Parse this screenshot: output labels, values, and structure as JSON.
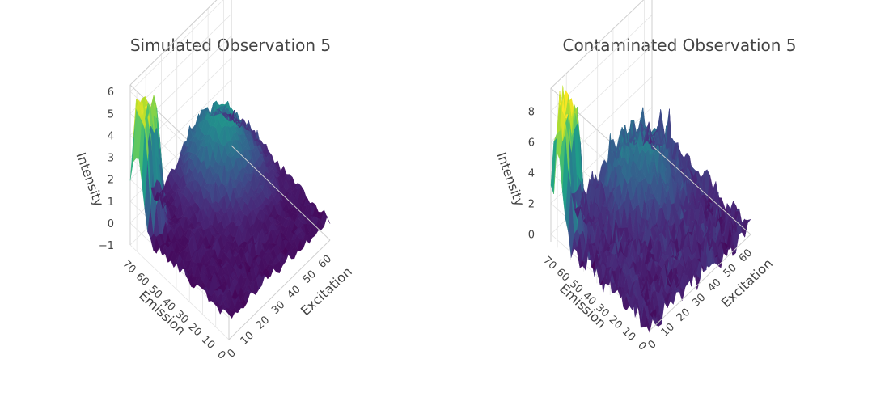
{
  "chart_data": [
    {
      "type": "surface",
      "title": "Simulated Observation 5",
      "xlabel": "Excitation",
      "ylabel": "Emission",
      "zlabel": "Intensity",
      "x_ticks": [
        "0",
        "10",
        "20",
        "30",
        "40",
        "50",
        "60"
      ],
      "y_ticks": [
        "0",
        "10",
        "20",
        "30",
        "40",
        "50",
        "60",
        "70"
      ],
      "z_ticks": [
        "−1",
        "0",
        "1",
        "2",
        "3",
        "4",
        "5",
        "6"
      ],
      "xlim": [
        0,
        65
      ],
      "ylim": [
        0,
        75
      ],
      "zlim": [
        -1,
        6
      ],
      "colorscale": "viridis",
      "peaks": [
        {
          "excitation": 6,
          "emission": 70,
          "height": 5.3
        },
        {
          "excitation": 45,
          "emission": 60,
          "height": 2.7
        }
      ],
      "noise_level": 0.25
    },
    {
      "type": "surface",
      "title": "Contaminated Observation 5",
      "xlabel": "Excitation",
      "ylabel": "Emission",
      "zlabel": "Intensity",
      "x_ticks": [
        "0",
        "10",
        "20",
        "30",
        "40",
        "50",
        "60"
      ],
      "y_ticks": [
        "0",
        "10",
        "20",
        "30",
        "40",
        "50",
        "60",
        "70"
      ],
      "z_ticks": [
        "0",
        "2",
        "4",
        "6",
        "8"
      ],
      "xlim": [
        0,
        65
      ],
      "ylim": [
        0,
        75
      ],
      "zlim": [
        0,
        9.5
      ],
      "colorscale": "viridis",
      "peaks": [
        {
          "excitation": 6,
          "emission": 70,
          "height": 7.5
        },
        {
          "excitation": 45,
          "emission": 60,
          "height": 3.0
        }
      ],
      "noise_level": 0.9
    }
  ]
}
